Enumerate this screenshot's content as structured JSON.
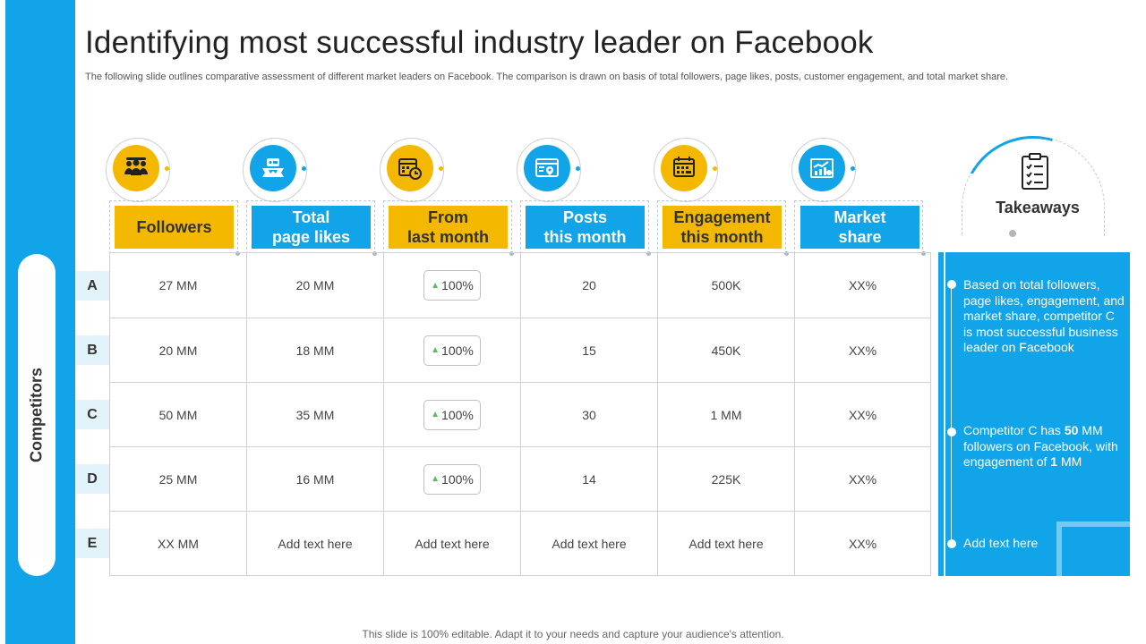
{
  "title": "Identifying most successful industry leader on Facebook",
  "subtitle": "The following slide outlines comparative assessment of different market leaders on Facebook. The comparison is drawn on basis of total followers, page likes, posts, customer engagement, and total market share.",
  "side_label": "Competitors",
  "colors": {
    "blue": "#12a4e8",
    "yellow": "#f5b800",
    "light_blue": "#e2f3fc"
  },
  "columns": [
    {
      "label": "Followers",
      "icon": "audience-icon",
      "color": "yellow"
    },
    {
      "label": "Total\npage likes",
      "icon": "likes-banner-icon",
      "color": "blue"
    },
    {
      "label": "From\nlast month",
      "icon": "calendar-clock-icon",
      "color": "yellow"
    },
    {
      "label": "Posts\nthis month",
      "icon": "map-post-icon",
      "color": "blue"
    },
    {
      "label": "Engagement\nthis month",
      "icon": "schedule-icon",
      "color": "yellow"
    },
    {
      "label": "Market\nshare",
      "icon": "bar-chart-icon",
      "color": "blue"
    }
  ],
  "rows": [
    {
      "label": "A",
      "followers": "27 MM",
      "page_likes": "20 MM",
      "change": "100%",
      "posts": "20",
      "engagement": "500K",
      "market_share": "XX%"
    },
    {
      "label": "B",
      "followers": "20 MM",
      "page_likes": "18 MM",
      "change": "100%",
      "posts": "15",
      "engagement": "450K",
      "market_share": "XX%"
    },
    {
      "label": "C",
      "followers": "50 MM",
      "page_likes": "35 MM",
      "change": "100%",
      "posts": "30",
      "engagement": "1 MM",
      "market_share": "XX%"
    },
    {
      "label": "D",
      "followers": "25 MM",
      "page_likes": "16 MM",
      "change": "100%",
      "posts": "14",
      "engagement": "225K",
      "market_share": "XX%"
    },
    {
      "label": "E",
      "followers": "XX MM",
      "page_likes": "Add text here",
      "change": "Add text here",
      "posts": "Add text here",
      "engagement": "Add text here",
      "market_share": "XX%"
    }
  ],
  "takeaways": {
    "title": "Takeaways",
    "icon": "checklist-icon",
    "item1": "Based on total followers, page likes, engagement, and market share, competitor C is most successful business leader on Facebook",
    "item2_a": "Competitor C has ",
    "item2_b": "50",
    "item2_c": " MM followers on Facebook, with engagement of ",
    "item2_d": "1",
    "item2_e": " MM",
    "item3": "Add text here"
  },
  "footer": "This slide is 100% editable. Adapt it to your needs and capture your audience's attention."
}
